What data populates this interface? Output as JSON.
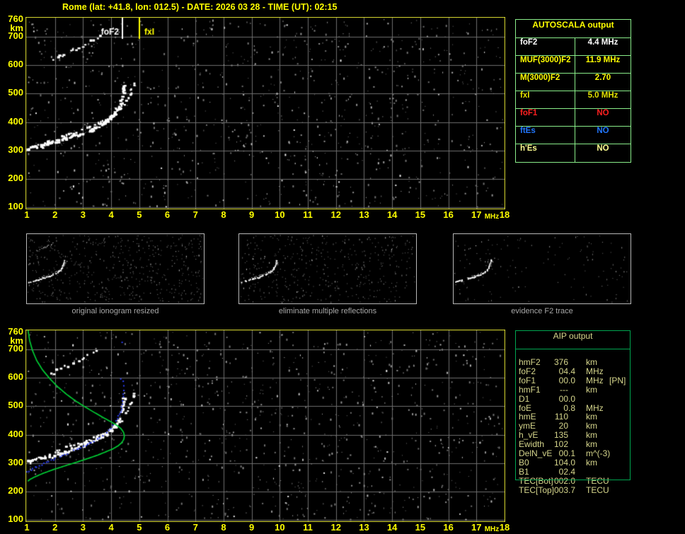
{
  "title": "Rome (lat: +41.8, lon: 012.5) - DATE: 2026 03 28 - TIME (UT): 02:15",
  "colors": {
    "background": "#000000",
    "label_yellow": "#ffff00",
    "plot_border": "#e3e332",
    "grid": "#6d6d6d",
    "table_border_light": "#8aee8a",
    "aip_border": "#00a550",
    "aip_text": "#d6d68c",
    "profile_green": "#00cc33",
    "restored_blue": "#2a3cf0",
    "thumb_border": "#b8b8b8",
    "caption_gray": "#a8a8a8"
  },
  "autoscala_table": {
    "title": "AUTOSCALA output",
    "rows": [
      {
        "param": "foF2",
        "value": "4.4 MHz",
        "color": "#ffffff"
      },
      {
        "param": "MUF(3000)F2",
        "value": "11.9 MHz",
        "color": "#ffff00"
      },
      {
        "param": "M(3000)F2",
        "value": "2.70",
        "color": "#ffff00"
      },
      {
        "param": "fxI",
        "value": "5.0 MHz",
        "color": "#e3e300"
      },
      {
        "param": "foF1",
        "value": "NO",
        "color": "#ff2020"
      },
      {
        "param": "ftEs",
        "value": "NO",
        "color": "#2277ff"
      },
      {
        "param": "h'Es",
        "value": "NO",
        "color": "#ffff90"
      }
    ]
  },
  "aip_table": {
    "title": "AIP output",
    "rows": [
      {
        "param": "hmF2",
        "value": "376",
        "unit": "km",
        "note": ""
      },
      {
        "param": "foF2",
        "value": "04.4",
        "unit": "MHz",
        "note": ""
      },
      {
        "param": "foF1",
        "value": "00.0",
        "unit": "MHz",
        "note": "[PN]"
      },
      {
        "param": "hmF1",
        "value": "---",
        "unit": "km",
        "note": ""
      },
      {
        "param": "D1",
        "value": "00.0",
        "unit": "",
        "note": ""
      },
      {
        "param": "foE",
        "value": "0.8",
        "unit": "MHz",
        "note": ""
      },
      {
        "param": "hmE",
        "value": "110",
        "unit": "km",
        "note": ""
      },
      {
        "param": "ymE",
        "value": "20",
        "unit": "km",
        "note": ""
      },
      {
        "param": "h_vE",
        "value": "135",
        "unit": "km",
        "note": ""
      },
      {
        "param": "Ewidth",
        "value": "102",
        "unit": "km",
        "note": ""
      },
      {
        "param": "DelN_vE",
        "value": "00.1",
        "unit": "m^(-3)",
        "note": ""
      },
      {
        "param": "B0",
        "value": "104.0",
        "unit": "km",
        "note": ""
      },
      {
        "param": "B1",
        "value": "02.4",
        "unit": "",
        "note": ""
      },
      {
        "param": "TEC[Bot]",
        "value": "002.0",
        "unit": "TECU",
        "note": ""
      },
      {
        "param": "TEC[Top]",
        "value": "003.7",
        "unit": "TECU",
        "note": ""
      }
    ]
  },
  "thumbnails": [
    {
      "caption": "original ionogram resized"
    },
    {
      "caption": "eliminate multiple reflections"
    },
    {
      "caption": "evidence F2 trace"
    }
  ],
  "chart_data": {
    "type": "scatter",
    "description": "Ionogram: virtual height (km) versus sounding frequency (MHz); repeated in top and bottom panels with autoscaled trace (blue) and electron-density profile (green) in the bottom panel.",
    "x_axis": {
      "unit": "MHz",
      "min": 1,
      "max": 18,
      "ticks": [
        1,
        2,
        3,
        4,
        5,
        6,
        7,
        8,
        9,
        10,
        11,
        12,
        13,
        14,
        15,
        16,
        17,
        18
      ]
    },
    "y_axis": {
      "unit": "km",
      "min": 100,
      "max": 760,
      "ticks": [
        760,
        700,
        600,
        500,
        400,
        300,
        200,
        100
      ]
    },
    "markers": [
      {
        "label": "foF2",
        "mhz": 4.4,
        "color": "#ffffff",
        "label_side": "left"
      },
      {
        "label": "fxI",
        "mhz": 5.0,
        "color": "#ffff00",
        "label_side": "right"
      }
    ],
    "echo_trace_ordinary": [
      [
        1.05,
        307
      ],
      [
        1.3,
        313
      ],
      [
        1.6,
        320
      ],
      [
        1.9,
        328
      ],
      [
        2.2,
        336
      ],
      [
        2.5,
        345
      ],
      [
        2.8,
        355
      ],
      [
        3.1,
        366
      ],
      [
        3.4,
        378
      ],
      [
        3.65,
        391
      ],
      [
        3.85,
        404
      ],
      [
        4.02,
        418
      ],
      [
        4.16,
        434
      ],
      [
        4.27,
        452
      ],
      [
        4.35,
        472
      ],
      [
        4.41,
        494
      ],
      [
        4.45,
        514
      ],
      [
        4.47,
        530
      ]
    ],
    "echo_trace_extraordinary": [
      [
        2.1,
        347
      ],
      [
        2.4,
        355
      ],
      [
        2.7,
        364
      ],
      [
        3.0,
        374
      ],
      [
        3.3,
        386
      ],
      [
        3.6,
        399
      ],
      [
        3.9,
        414
      ],
      [
        4.15,
        431
      ],
      [
        4.35,
        451
      ],
      [
        4.52,
        474
      ],
      [
        4.66,
        499
      ],
      [
        4.76,
        523
      ],
      [
        4.83,
        546
      ]
    ],
    "second_hop_trace": [
      [
        1.85,
        613
      ],
      [
        2.05,
        626
      ],
      [
        2.3,
        639
      ],
      [
        2.55,
        650
      ],
      [
        2.8,
        661
      ],
      [
        3.0,
        669
      ],
      [
        3.2,
        680
      ],
      [
        3.42,
        693
      ],
      [
        3.58,
        706
      ]
    ],
    "profile_curve_green": [
      [
        1.04,
        768
      ],
      [
        1.1,
        731
      ],
      [
        1.2,
        696
      ],
      [
        1.35,
        661
      ],
      [
        1.55,
        629
      ],
      [
        1.8,
        599
      ],
      [
        2.08,
        570
      ],
      [
        2.4,
        543
      ],
      [
        2.73,
        519
      ],
      [
        3.08,
        497
      ],
      [
        3.42,
        477
      ],
      [
        3.72,
        460
      ],
      [
        3.98,
        446
      ],
      [
        4.2,
        433
      ],
      [
        4.35,
        421
      ],
      [
        4.44,
        408
      ],
      [
        4.47,
        396
      ],
      [
        4.45,
        384
      ],
      [
        4.38,
        372
      ],
      [
        4.25,
        361
      ],
      [
        4.06,
        350
      ],
      [
        3.82,
        340
      ],
      [
        3.52,
        328
      ],
      [
        3.17,
        316
      ],
      [
        2.77,
        303
      ],
      [
        2.35,
        290
      ],
      [
        1.94,
        277
      ],
      [
        1.58,
        264
      ],
      [
        1.3,
        252
      ],
      [
        1.12,
        243
      ],
      [
        1.03,
        236
      ]
    ],
    "restored_trace_blue": [
      [
        1.0,
        268
      ],
      [
        1.15,
        277
      ],
      [
        1.35,
        287
      ],
      [
        1.6,
        298
      ],
      [
        1.85,
        309
      ],
      [
        2.1,
        319
      ],
      [
        2.35,
        329
      ],
      [
        2.6,
        340
      ],
      [
        2.85,
        351
      ],
      [
        3.1,
        362
      ],
      [
        3.3,
        372
      ],
      [
        3.5,
        384
      ],
      [
        3.7,
        397
      ],
      [
        3.85,
        409
      ],
      [
        4.0,
        423
      ],
      [
        4.12,
        439
      ],
      [
        4.22,
        456
      ],
      [
        4.3,
        473
      ],
      [
        4.36,
        490
      ],
      [
        4.4,
        508
      ],
      [
        4.43,
        526
      ],
      [
        4.45,
        545
      ],
      [
        4.46,
        562
      ]
    ],
    "restored_trace_blue_sparse": [
      [
        4.45,
        572
      ],
      [
        4.43,
        588
      ],
      [
        4.34,
        596
      ],
      [
        4.39,
        725
      ]
    ]
  }
}
